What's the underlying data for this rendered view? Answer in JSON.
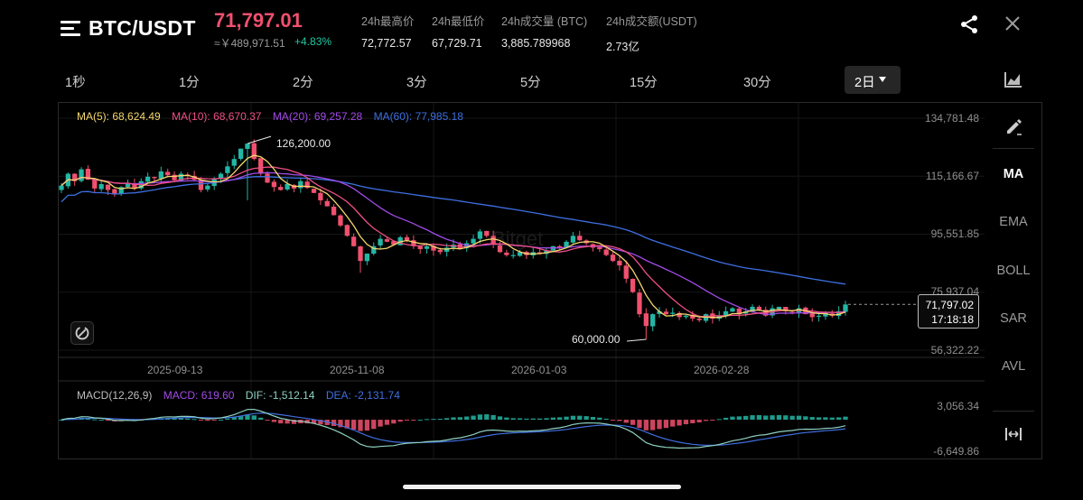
{
  "header": {
    "pair": "BTC/USDT",
    "price": "71,797.01",
    "cny_price": "≈￥489,971.51",
    "change": "+4.83%",
    "stats": [
      {
        "label": "24h最高价",
        "value": "72,772.57"
      },
      {
        "label": "24h最低价",
        "value": "67,729.71"
      },
      {
        "label": "24h成交量 (BTC)",
        "value": "3,885.789968"
      },
      {
        "label": "24h成交额(USDT)",
        "value": "2.73亿"
      }
    ]
  },
  "intervals": [
    "1秒",
    "1分",
    "2分",
    "3分",
    "5分",
    "15分",
    "30分"
  ],
  "active_interval": "2日",
  "indicators": {
    "ma5": "MA(5): 68,624.49",
    "ma10": "MA(10): 68,670.37",
    "ma20": "MA(20): 69,257.28",
    "ma60": "MA(60): 77,985.18"
  },
  "y_ticks": [
    "134,781.48",
    "115,166.67",
    "95,551.85",
    "75,937.04",
    "56,322.22"
  ],
  "x_ticks": [
    "2025-09-13",
    "2025-11-08",
    "2026-01-03",
    "2026-02-28"
  ],
  "watermark": "Bitget",
  "annotations": {
    "high": "126,200.00",
    "low": "60,000.00"
  },
  "last_price_tag": {
    "price": "71,797.02",
    "countdown": "17:18:18"
  },
  "macd": {
    "title": "MACD(12,26,9)",
    "macd": "MACD: 619.60",
    "dif": "DIF: -1,512.14",
    "dea": "DEA: -2,131.74",
    "y_ticks": [
      "3,056.34",
      "-6,649.86"
    ]
  },
  "right_panel": [
    "MA",
    "EMA",
    "BOLL",
    "SAR",
    "AVL"
  ],
  "right_panel_active": "MA",
  "colors": {
    "up": "#23b6a4",
    "down": "#f0506e",
    "ma5": "#f5d76e",
    "ma10": "#ef4f86",
    "ma20": "#a24be8",
    "ma60": "#3d6fe0",
    "dif": "#8fd1c0",
    "dea": "#3f6fe0"
  },
  "chart_data": {
    "type": "candlestick",
    "ylim": [
      56322.22,
      134781.48
    ],
    "high": 126200.0,
    "low": 60000.0,
    "last": 71797.02,
    "closes": [
      112000,
      116000,
      113500,
      117500,
      114000,
      111000,
      112500,
      110500,
      109000,
      111500,
      112800,
      111200,
      113500,
      115000,
      114500,
      116800,
      115500,
      113800,
      116000,
      115200,
      114000,
      110500,
      112000,
      114500,
      116000,
      118500,
      121000,
      124500,
      126200,
      121000,
      116000,
      113000,
      111500,
      110500,
      112500,
      111000,
      113500,
      111200,
      109500,
      107000,
      105000,
      102000,
      98500,
      95000,
      91500,
      86500,
      89000,
      91500,
      94000,
      93000,
      92000,
      94500,
      93500,
      91500,
      90500,
      91500,
      90000,
      89500,
      91000,
      92000,
      90500,
      92500,
      94000,
      96500,
      95000,
      92000,
      89500,
      88500,
      88500,
      89500,
      88500,
      89500,
      89000,
      90000,
      91500,
      91000,
      93000,
      95000,
      93500,
      92500,
      91000,
      90500,
      88500,
      86500,
      85000,
      80500,
      76000,
      68500,
      64500,
      68500,
      69500,
      68500,
      69000,
      67500,
      68000,
      67000,
      66500,
      68500,
      67000,
      68000,
      69500,
      70500,
      68500,
      69500,
      71000,
      70000,
      68000,
      70500,
      71000,
      69500,
      69000,
      70500,
      68500,
      67500,
      68000,
      69000,
      68000,
      69500,
      71797
    ]
  }
}
